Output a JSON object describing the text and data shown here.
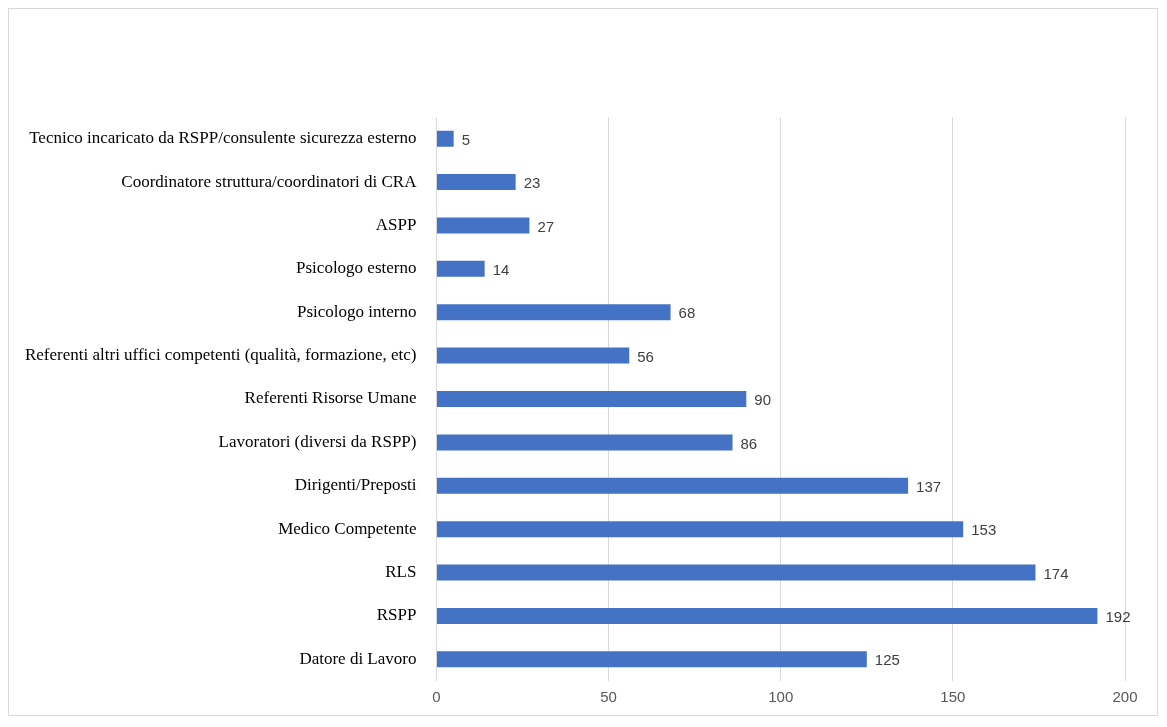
{
  "chart_data": {
    "type": "bar",
    "orientation": "horizontal",
    "categories": [
      "Tecnico incaricato da RSPP/consulente sicurezza esterno",
      "Coordinatore struttura/coordinatori di CRA",
      "ASPP",
      "Psicologo esterno",
      "Psicologo interno",
      "Referenti altri uffici competenti (qualità, formazione, etc)",
      "Referenti Risorse Umane",
      "Lavoratori (diversi da RSPP)",
      "Dirigenti/Preposti",
      "Medico Competente",
      "RLS",
      "RSPP",
      "Datore di Lavoro"
    ],
    "values": [
      5,
      23,
      27,
      14,
      68,
      56,
      90,
      86,
      137,
      153,
      174,
      192,
      125
    ],
    "color": "#4472c4",
    "xlim": [
      0,
      200
    ],
    "xticks": [
      0,
      50,
      100,
      150,
      200
    ],
    "grid": "x",
    "data_labels": true,
    "legend": false
  }
}
